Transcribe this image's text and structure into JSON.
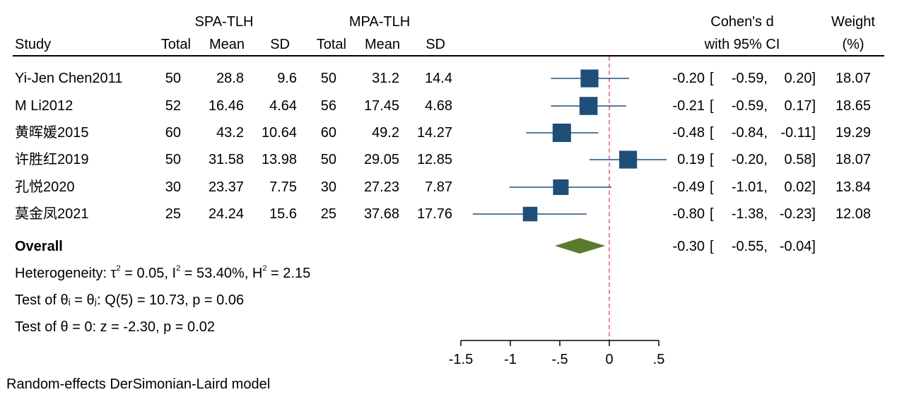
{
  "header": {
    "group1": "SPA-TLH",
    "group2": "MPA-TLH",
    "study": "Study",
    "total": "Total",
    "mean": "Mean",
    "sd": "SD",
    "effect_line1": "Cohen's d",
    "effect_line2": "with 95% CI",
    "weight_line1": "Weight",
    "weight_line2": "(%)"
  },
  "rows": [
    {
      "study": "Yi-Jen Chen2011",
      "n1": "50",
      "m1": "28.8",
      "sd1": "9.6",
      "n2": "50",
      "m2": "31.2",
      "sd2": "14.4",
      "d": "-0.20",
      "lo": "-0.59,",
      "hi": "0.20]",
      "w": "18.07"
    },
    {
      "study": "M Li2012",
      "n1": "52",
      "m1": "16.46",
      "sd1": "4.64",
      "n2": "56",
      "m2": "17.45",
      "sd2": "4.68",
      "d": "-0.21",
      "lo": "-0.59,",
      "hi": "0.17]",
      "w": "18.65"
    },
    {
      "study": "黄晖媛2015",
      "n1": "60",
      "m1": "43.2",
      "sd1": "10.64",
      "n2": "60",
      "m2": "49.2",
      "sd2": "14.27",
      "d": "-0.48",
      "lo": "-0.84,",
      "hi": "-0.11]",
      "w": "19.29"
    },
    {
      "study": "许胜红2019",
      "n1": "50",
      "m1": "31.58",
      "sd1": "13.98",
      "n2": "50",
      "m2": "29.05",
      "sd2": "12.85",
      "d": "0.19",
      "lo": "-0.20,",
      "hi": "0.58]",
      "w": "18.07"
    },
    {
      "study": "孔悦2020",
      "n1": "30",
      "m1": "23.37",
      "sd1": "7.75",
      "n2": "30",
      "m2": "27.23",
      "sd2": "7.87",
      "d": "-0.49",
      "lo": "-1.01,",
      "hi": "0.02]",
      "w": "13.84"
    },
    {
      "study": "莫金凤2021",
      "n1": "25",
      "m1": "24.24",
      "sd1": "15.6",
      "n2": "25",
      "m2": "37.68",
      "sd2": "17.76",
      "d": "-0.80",
      "lo": "-1.38,",
      "hi": "-0.23]",
      "w": "12.08"
    }
  ],
  "overall": {
    "label": "Overall",
    "d": "-0.30",
    "lo": "-0.55,",
    "hi": "-0.04]"
  },
  "stats": {
    "het_prefix": "Heterogeneity: τ",
    "het_sup": "2",
    "het_tau": " = 0.05, I",
    "het_i2": " = 53.40%, H",
    "het_h2": " = 2.15",
    "test_q": "Test of θᵢ = θⱼ: Q(5) = 10.73, p = 0.06",
    "test_z": "Test of θ = 0: z = -2.30, p = 0.02"
  },
  "footer": "Random-effects DerSimonian-Laird model",
  "bracket": "[",
  "colors": {
    "box": "#1f4e79",
    "ci": "#1f4e79",
    "diamond": "#5a7a2e",
    "refline": "#e05a7a"
  },
  "chart_data": {
    "type": "forest",
    "title": "",
    "xlabel": "",
    "x_range": [
      -1.5,
      0.5
    ],
    "x_ticks": [
      -1.5,
      -1,
      -0.5,
      0,
      0.5
    ],
    "x_tick_labels": [
      "-1.5",
      "-1",
      "-.5",
      "0",
      ".5"
    ],
    "reference_line": 0,
    "studies": [
      {
        "name": "Yi-Jen Chen2011",
        "d": -0.2,
        "ci": [
          -0.59,
          0.2
        ],
        "weight": 18.07
      },
      {
        "name": "M Li2012",
        "d": -0.21,
        "ci": [
          -0.59,
          0.17
        ],
        "weight": 18.65
      },
      {
        "name": "黄晖媛2015",
        "d": -0.48,
        "ci": [
          -0.84,
          -0.11
        ],
        "weight": 19.29
      },
      {
        "name": "许胜红2019",
        "d": 0.19,
        "ci": [
          -0.2,
          0.58
        ],
        "weight": 18.07
      },
      {
        "name": "孔悦2020",
        "d": -0.49,
        "ci": [
          -1.01,
          0.02
        ],
        "weight": 13.84
      },
      {
        "name": "莫金凤2021",
        "d": -0.8,
        "ci": [
          -1.38,
          -0.23
        ],
        "weight": 12.08
      }
    ],
    "overall": {
      "d": -0.3,
      "ci": [
        -0.55,
        -0.04
      ]
    }
  }
}
